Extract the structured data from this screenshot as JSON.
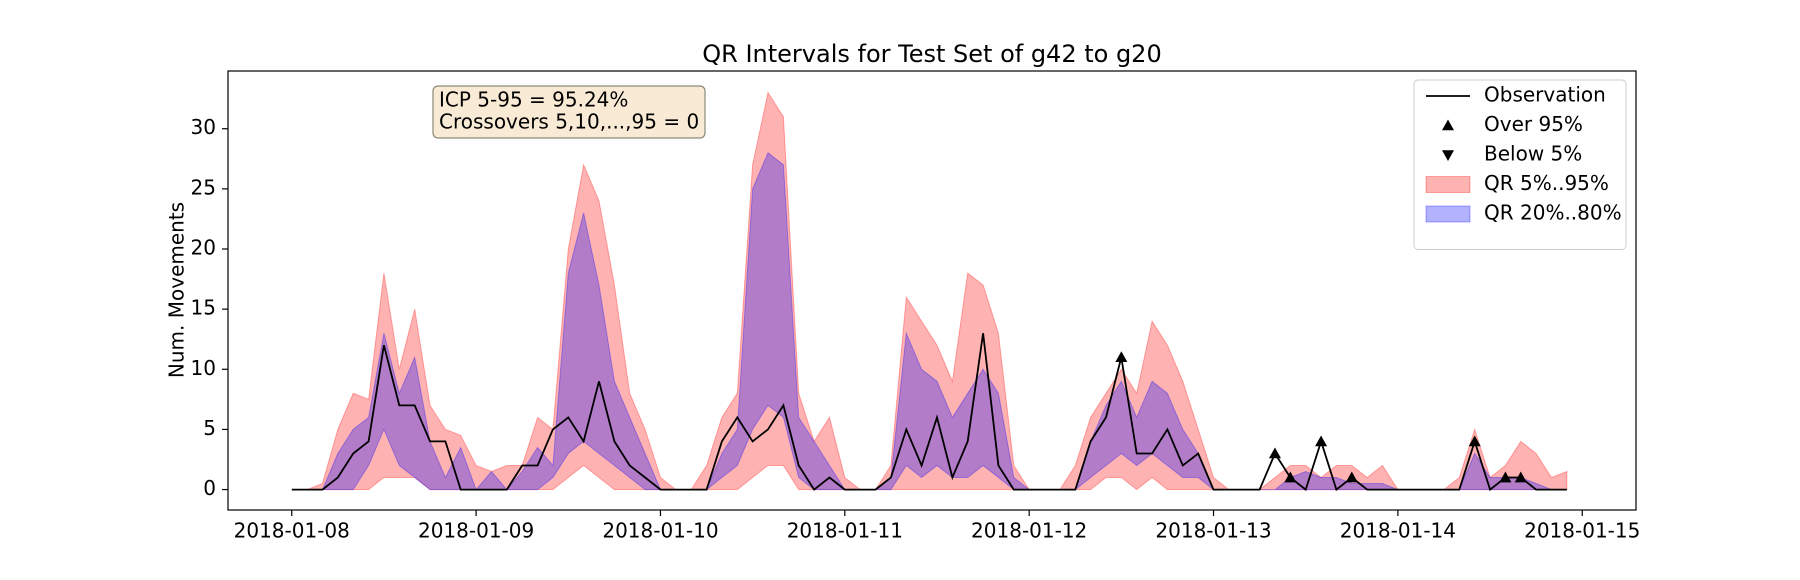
{
  "chart_data": {
    "type": "line",
    "title": "QR Intervals for Test Set of g42 to g20",
    "y_label": "Num. Movements",
    "annotation": [
      "ICP 5-95 = 95.24%",
      "Crossovers 5,10,...,95 = 0"
    ],
    "legend": "upper right",
    "x": [
      0,
      2,
      4,
      6,
      8,
      10,
      12,
      14,
      16,
      18,
      20,
      22,
      24,
      26,
      28,
      30,
      32,
      34,
      36,
      38,
      40,
      42,
      44,
      46,
      48,
      50,
      52,
      54,
      56,
      58,
      60,
      62,
      64,
      66,
      68,
      70,
      72,
      74,
      76,
      78,
      80,
      82,
      84,
      86,
      88,
      90,
      92,
      94,
      96,
      98,
      100,
      102,
      104,
      106,
      108,
      110,
      112,
      114,
      116,
      118,
      120,
      122,
      124,
      126,
      128,
      130,
      132,
      134,
      136,
      138,
      140,
      142,
      144,
      146,
      148,
      150,
      152,
      154,
      156,
      158,
      160,
      162,
      164,
      166
    ],
    "xlim": [
      -8.3,
      175
    ],
    "xticks": [
      {
        "value": 0,
        "label": "2018-01-08"
      },
      {
        "value": 24,
        "label": "2018-01-09"
      },
      {
        "value": 48,
        "label": "2018-01-10"
      },
      {
        "value": 72,
        "label": "2018-01-11"
      },
      {
        "value": 96,
        "label": "2018-01-12"
      },
      {
        "value": 120,
        "label": "2018-01-13"
      },
      {
        "value": 144,
        "label": "2018-01-14"
      },
      {
        "value": 168,
        "label": "2018-01-15"
      }
    ],
    "ylim": [
      -1.7,
      34.8
    ],
    "yticks": [
      0,
      5,
      10,
      15,
      20,
      25,
      30
    ],
    "series": [
      {
        "name": "Observation",
        "color": "#000000",
        "values": [
          0,
          0,
          0,
          1,
          3,
          4,
          12,
          7,
          7,
          4,
          4,
          0,
          0,
          0,
          0,
          2,
          2,
          5,
          6,
          4,
          9,
          4,
          2,
          1,
          0,
          0,
          0,
          0,
          4,
          6,
          4,
          5,
          7,
          2,
          0,
          1,
          0,
          0,
          0,
          1,
          5,
          2,
          6,
          1,
          4,
          13,
          2,
          0,
          0,
          0,
          0,
          0,
          4,
          6,
          11,
          3,
          3,
          5,
          2,
          3,
          0,
          0,
          0,
          0,
          3,
          1,
          0,
          4,
          0,
          1,
          0,
          0,
          0,
          0,
          0,
          0,
          0,
          4,
          0,
          1,
          1,
          0,
          0,
          0
        ]
      }
    ],
    "bands": [
      {
        "name": "QR 5%..95%",
        "color": "#ff0000",
        "lower": [
          0,
          0,
          0,
          0,
          0,
          0,
          1,
          1,
          1,
          0,
          0,
          0,
          0,
          0,
          0,
          0,
          0,
          0,
          1,
          2,
          1,
          0,
          0,
          0,
          0,
          0,
          0,
          0,
          0,
          0,
          1,
          2,
          2,
          0,
          0,
          0,
          0,
          0,
          0,
          0,
          0,
          0,
          0,
          0,
          0,
          0,
          0,
          0,
          0,
          0,
          0,
          0,
          0,
          1,
          1,
          0,
          1,
          0,
          0,
          0,
          0,
          0,
          0,
          0,
          0,
          0,
          0,
          0,
          0,
          0,
          0,
          0,
          0,
          0,
          0,
          0,
          0,
          0,
          0,
          0,
          0,
          0,
          0,
          0
        ],
        "upper": [
          0,
          0,
          0.5,
          5,
          8,
          7.5,
          18,
          10,
          15,
          7,
          5,
          4.5,
          2,
          1.5,
          2,
          2,
          6,
          5,
          20,
          27,
          24,
          17,
          8,
          5,
          1,
          0,
          0,
          2,
          6,
          8,
          27,
          33,
          31,
          8,
          4,
          6,
          1,
          0,
          0,
          2,
          16,
          14,
          12,
          9,
          18,
          17,
          13,
          2,
          0,
          0,
          0,
          2,
          6,
          8,
          10,
          8,
          14,
          12,
          9,
          5,
          1,
          0,
          0,
          0,
          1,
          2,
          2,
          1,
          2,
          2,
          1,
          2,
          0,
          0,
          0,
          0,
          1,
          5,
          1,
          2,
          4,
          3,
          1,
          1.5
        ]
      },
      {
        "name": "QR 20%..80%",
        "color": "#0000ff",
        "lower": [
          0,
          0,
          0,
          0,
          0,
          2,
          5,
          2,
          1,
          0,
          0,
          0,
          0,
          0,
          0,
          0,
          0,
          1,
          3,
          4,
          3,
          2,
          1,
          0,
          0,
          0,
          0,
          0,
          1,
          2,
          5,
          7,
          6,
          1,
          0,
          0,
          0,
          0,
          0,
          0,
          2,
          1,
          2,
          1,
          1,
          2,
          1,
          0,
          0,
          0,
          0,
          0,
          1,
          2,
          3,
          2,
          3,
          2,
          1,
          1,
          0,
          0,
          0,
          0,
          0,
          0,
          0,
          0,
          0,
          0,
          0,
          0,
          0,
          0,
          0,
          0,
          0,
          0,
          0,
          0,
          0,
          0,
          0,
          0
        ],
        "upper": [
          0,
          0,
          0,
          3,
          5,
          6,
          13,
          8,
          11,
          4,
          1,
          3.5,
          0,
          1.5,
          0,
          1.5,
          3.5,
          2,
          18,
          23,
          17,
          9,
          6,
          3,
          0,
          0,
          0,
          0,
          3,
          5,
          25,
          28,
          27,
          6,
          4,
          2,
          0,
          0,
          0,
          1,
          13,
          10,
          9,
          6,
          8,
          10,
          8,
          1,
          0,
          0,
          0,
          0,
          4,
          7,
          9,
          6,
          9,
          8,
          5,
          3,
          0,
          0,
          0,
          0,
          0,
          1,
          1.5,
          1,
          1,
          0.5,
          0.5,
          0.5,
          0,
          0,
          0,
          0,
          0,
          3,
          1,
          1,
          1,
          0.5,
          0,
          0
        ]
      }
    ],
    "markers": [
      {
        "name": "Over 95%",
        "marker": "^",
        "color": "#000000",
        "x": [
          108,
          128,
          130,
          134,
          138,
          154,
          158,
          160
        ],
        "values": [
          11,
          3,
          1,
          4,
          1,
          4,
          1,
          1
        ]
      },
      {
        "name": "Below 5%",
        "marker": "v",
        "color": "#000000",
        "x": [],
        "values": []
      }
    ]
  }
}
